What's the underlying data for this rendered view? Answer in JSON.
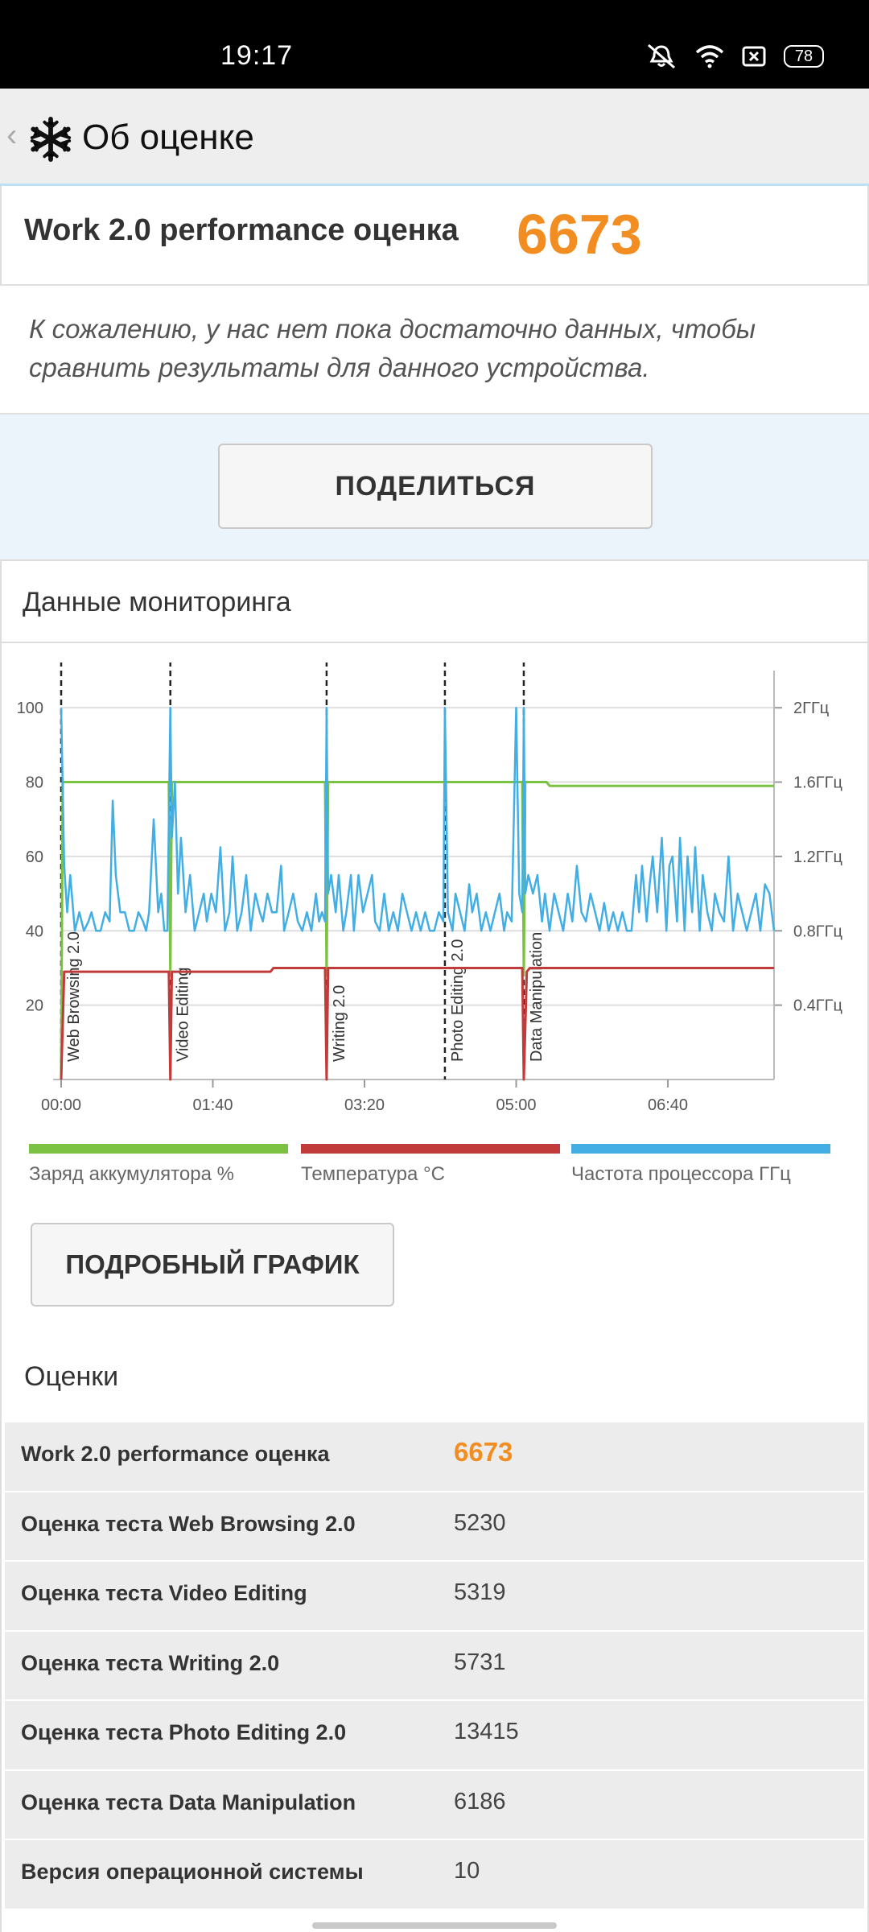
{
  "status": {
    "time": "19:17",
    "battery": "78"
  },
  "appbar": {
    "back": "‹",
    "title": "Об оценке"
  },
  "score": {
    "label": "Work 2.0 performance оценка",
    "value": "6673"
  },
  "notice": "К сожалению, у нас нет пока достаточно данных, чтобы сравнить результаты для данного устройства.",
  "share_label": "ПОДЕЛИТЬСЯ",
  "monitor": {
    "title": "Данные мониторинга",
    "legend": [
      "Заряд аккумулятора %",
      "Температура °C",
      "Частота процессора ГГц"
    ],
    "detail_label": "ПОДРОБНЫЙ ГРАФИК"
  },
  "colors": {
    "battery": "#7cc242",
    "temperature": "#c13b3b",
    "cpu": "#42aee4",
    "accent": "#f28d22"
  },
  "chart_data": {
    "type": "line",
    "x_ticks": [
      "00:00",
      "01:40",
      "03:20",
      "05:00",
      "06:40"
    ],
    "y_left_ticks": [
      "100",
      "80",
      "60",
      "40",
      "20"
    ],
    "y_left_range": [
      0,
      110
    ],
    "y_right_ticks": [
      "2ГГц",
      "1.6ГГц",
      "1.2ГГц",
      "0.8ГГц",
      "0.4ГГц"
    ],
    "x_range_seconds": [
      0,
      470
    ],
    "grid": true,
    "markers": [
      {
        "t": 0,
        "label": "Web Browsing 2.0"
      },
      {
        "t": 72,
        "label": "Video Editing"
      },
      {
        "t": 175,
        "label": "Writing 2.0"
      },
      {
        "t": 253,
        "label": "Photo Editing 2.0"
      },
      {
        "t": 305,
        "label": "Data Manipulation"
      }
    ],
    "series": [
      {
        "name": "Заряд аккумулятора %",
        "points": [
          [
            0,
            0
          ],
          [
            1,
            80
          ],
          [
            71,
            80
          ],
          [
            72,
            28
          ],
          [
            73,
            80
          ],
          [
            174,
            80
          ],
          [
            175,
            28
          ],
          [
            176,
            80
          ],
          [
            304,
            80
          ],
          [
            305,
            28
          ],
          [
            306,
            80
          ],
          [
            320,
            80
          ],
          [
            322,
            79
          ],
          [
            470,
            79
          ]
        ]
      },
      {
        "name": "Температура °C",
        "points": [
          [
            0,
            0
          ],
          [
            2,
            29
          ],
          [
            71,
            29
          ],
          [
            72,
            0
          ],
          [
            73,
            29
          ],
          [
            138,
            29
          ],
          [
            140,
            30
          ],
          [
            174,
            30
          ],
          [
            175,
            0
          ],
          [
            176,
            30
          ],
          [
            304,
            30
          ],
          [
            305,
            0
          ],
          [
            307,
            29
          ],
          [
            309,
            30
          ],
          [
            470,
            30
          ]
        ]
      },
      {
        "name": "Частота процессора ГГц",
        "points": [
          [
            0,
            2.0
          ],
          [
            2,
            1.15
          ],
          [
            4,
            0.9
          ],
          [
            6,
            1.1
          ],
          [
            9,
            0.8
          ],
          [
            12,
            0.9
          ],
          [
            15,
            0.8
          ],
          [
            18,
            0.85
          ],
          [
            20,
            0.9
          ],
          [
            23,
            0.8
          ],
          [
            26,
            0.8
          ],
          [
            29,
            0.9
          ],
          [
            32,
            0.85
          ],
          [
            34,
            1.5
          ],
          [
            36,
            1.1
          ],
          [
            39,
            0.9
          ],
          [
            42,
            0.9
          ],
          [
            45,
            0.8
          ],
          [
            48,
            0.8
          ],
          [
            51,
            0.9
          ],
          [
            54,
            0.85
          ],
          [
            56,
            0.8
          ],
          [
            58,
            0.9
          ],
          [
            61,
            1.4
          ],
          [
            64,
            0.9
          ],
          [
            66,
            1.0
          ],
          [
            68,
            0.8
          ],
          [
            70,
            0.8
          ],
          [
            72,
            2.0
          ],
          [
            73,
            1.3
          ],
          [
            75,
            1.6
          ],
          [
            77,
            1.0
          ],
          [
            79,
            1.3
          ],
          [
            82,
            0.9
          ],
          [
            85,
            1.1
          ],
          [
            88,
            0.8
          ],
          [
            91,
            0.9
          ],
          [
            94,
            1.0
          ],
          [
            96,
            0.85
          ],
          [
            99,
            1.0
          ],
          [
            102,
            0.9
          ],
          [
            105,
            1.25
          ],
          [
            108,
            0.8
          ],
          [
            111,
            0.9
          ],
          [
            113,
            1.2
          ],
          [
            116,
            0.8
          ],
          [
            119,
            0.9
          ],
          [
            122,
            1.1
          ],
          [
            125,
            0.8
          ],
          [
            128,
            1.0
          ],
          [
            131,
            0.9
          ],
          [
            133,
            0.85
          ],
          [
            136,
            1.0
          ],
          [
            139,
            0.9
          ],
          [
            142,
            0.9
          ],
          [
            145,
            1.15
          ],
          [
            147,
            0.8
          ],
          [
            150,
            0.9
          ],
          [
            153,
            1.0
          ],
          [
            156,
            0.85
          ],
          [
            159,
            0.8
          ],
          [
            162,
            0.9
          ],
          [
            165,
            0.8
          ],
          [
            168,
            1.0
          ],
          [
            170,
            0.85
          ],
          [
            172,
            0.9
          ],
          [
            174,
            0.85
          ],
          [
            175,
            2.0
          ],
          [
            176,
            1.0
          ],
          [
            178,
            1.1
          ],
          [
            181,
            0.9
          ],
          [
            183,
            1.1
          ],
          [
            186,
            0.8
          ],
          [
            188,
            0.9
          ],
          [
            191,
            1.1
          ],
          [
            193,
            0.8
          ],
          [
            196,
            1.1
          ],
          [
            199,
            0.9
          ],
          [
            202,
            1.0
          ],
          [
            205,
            1.1
          ],
          [
            207,
            0.85
          ],
          [
            210,
            0.8
          ],
          [
            213,
            1.0
          ],
          [
            216,
            0.8
          ],
          [
            219,
            0.9
          ],
          [
            222,
            0.8
          ],
          [
            225,
            1.0
          ],
          [
            228,
            0.9
          ],
          [
            231,
            0.8
          ],
          [
            234,
            0.9
          ],
          [
            237,
            0.8
          ],
          [
            240,
            0.9
          ],
          [
            243,
            0.8
          ],
          [
            246,
            0.8
          ],
          [
            249,
            0.9
          ],
          [
            252,
            0.85
          ],
          [
            253,
            2.0
          ],
          [
            255,
            0.9
          ],
          [
            258,
            0.8
          ],
          [
            260,
            1.0
          ],
          [
            263,
            0.9
          ],
          [
            266,
            0.8
          ],
          [
            269,
            1.05
          ],
          [
            271,
            0.9
          ],
          [
            274,
            1.0
          ],
          [
            277,
            0.8
          ],
          [
            280,
            0.9
          ],
          [
            283,
            0.8
          ],
          [
            286,
            0.9
          ],
          [
            289,
            1.0
          ],
          [
            292,
            0.8
          ],
          [
            294,
            0.9
          ],
          [
            297,
            0.85
          ],
          [
            300,
            2.0
          ],
          [
            302,
            1.0
          ],
          [
            304,
            0.9
          ],
          [
            305,
            2.0
          ],
          [
            306,
            1.0
          ],
          [
            308,
            1.1
          ],
          [
            311,
            1.0
          ],
          [
            314,
            1.1
          ],
          [
            317,
            0.85
          ],
          [
            319,
            1.0
          ],
          [
            322,
            0.8
          ],
          [
            325,
            1.0
          ],
          [
            328,
            0.9
          ],
          [
            331,
            0.8
          ],
          [
            334,
            1.0
          ],
          [
            337,
            0.85
          ],
          [
            340,
            1.15
          ],
          [
            343,
            0.9
          ],
          [
            346,
            0.85
          ],
          [
            349,
            1.0
          ],
          [
            352,
            0.9
          ],
          [
            355,
            0.8
          ],
          [
            358,
            0.95
          ],
          [
            361,
            0.8
          ],
          [
            364,
            0.9
          ],
          [
            367,
            0.8
          ],
          [
            370,
            0.9
          ],
          [
            373,
            0.8
          ],
          [
            376,
            0.8
          ],
          [
            379,
            1.1
          ],
          [
            381,
            0.9
          ],
          [
            383,
            1.15
          ],
          [
            386,
            0.85
          ],
          [
            388,
            1.05
          ],
          [
            390,
            1.2
          ],
          [
            393,
            0.9
          ],
          [
            396,
            1.3
          ],
          [
            399,
            0.8
          ],
          [
            401,
            1.15
          ],
          [
            403,
            1.2
          ],
          [
            406,
            0.85
          ],
          [
            408,
            1.3
          ],
          [
            411,
            0.8
          ],
          [
            413,
            1.2
          ],
          [
            416,
            0.9
          ],
          [
            418,
            1.25
          ],
          [
            421,
            0.8
          ],
          [
            423,
            1.1
          ],
          [
            426,
            0.9
          ],
          [
            429,
            0.8
          ],
          [
            431,
            1.0
          ],
          [
            434,
            0.9
          ],
          [
            437,
            0.85
          ],
          [
            440,
            1.2
          ],
          [
            443,
            0.8
          ],
          [
            446,
            1.0
          ],
          [
            449,
            0.9
          ],
          [
            452,
            0.8
          ],
          [
            455,
            0.9
          ],
          [
            458,
            1.0
          ],
          [
            461,
            0.8
          ],
          [
            464,
            1.05
          ],
          [
            467,
            1.0
          ],
          [
            470,
            0.8
          ]
        ]
      }
    ]
  },
  "scores_title": "Оценки",
  "scores": [
    {
      "label": "Work 2.0 performance оценка",
      "value": "6673"
    },
    {
      "label": "Оценка теста Web Browsing 2.0",
      "value": "5230"
    },
    {
      "label": "Оценка теста Video Editing",
      "value": "5319"
    },
    {
      "label": "Оценка теста Writing 2.0",
      "value": "5731"
    },
    {
      "label": "Оценка теста Photo Editing 2.0",
      "value": "13415"
    },
    {
      "label": "Оценка теста Data Manipulation",
      "value": "6186"
    },
    {
      "label": "Версия операционной системы",
      "value": "10"
    }
  ]
}
